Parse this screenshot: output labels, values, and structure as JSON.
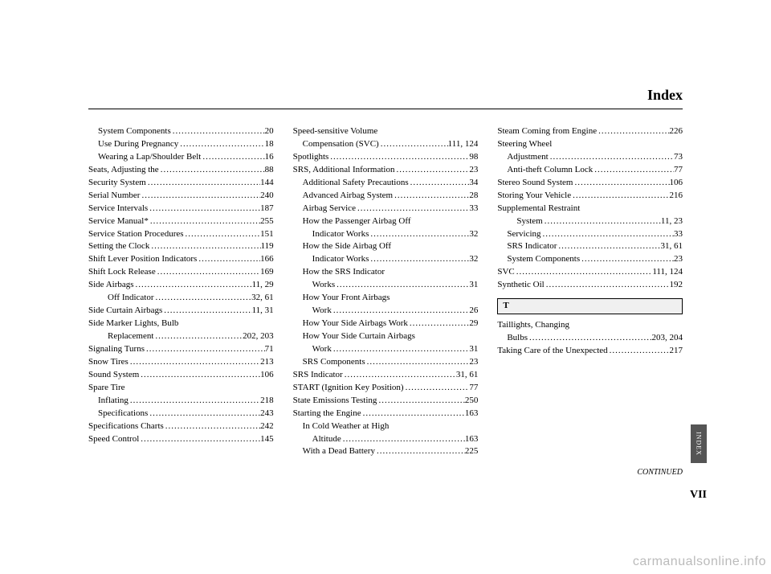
{
  "header": {
    "title": "Index"
  },
  "continued": "CONTINUED",
  "page_number": "VII",
  "index_tab": "INDEX",
  "watermark": "carmanualsonline.info",
  "section_letters": {
    "T": "T"
  },
  "columns": [
    [
      {
        "label": "System Components",
        "page": "20",
        "indent": 1
      },
      {
        "label": "Use During Pregnancy",
        "page": "18",
        "indent": 1
      },
      {
        "label": "Wearing a Lap/Shoulder Belt",
        "page": "16",
        "indent": 1
      },
      {
        "label": "Seats, Adjusting the",
        "page": "88",
        "indent": 0
      },
      {
        "label": "Security System",
        "page": "144",
        "indent": 0
      },
      {
        "label": "Serial Number",
        "page": "240",
        "indent": 0
      },
      {
        "label": "Service Intervals",
        "page": "187",
        "indent": 0
      },
      {
        "label": "Service Manual*",
        "page": "255",
        "indent": 0
      },
      {
        "label": "Service Station Procedures",
        "page": "151",
        "indent": 0
      },
      {
        "label": "Setting the Clock",
        "page": "119",
        "indent": 0
      },
      {
        "label": "Shift Lever Position Indicators",
        "page": "166",
        "indent": 0
      },
      {
        "label": "Shift Lock Release",
        "page": "169",
        "indent": 0
      },
      {
        "label": "Side Airbags",
        "page": "11, 29",
        "indent": 0
      },
      {
        "label": "Off Indicator",
        "page": "32, 61",
        "indent": 2
      },
      {
        "label": "Side Curtain Airbags",
        "page": "11, 31",
        "indent": 0
      },
      {
        "label": "Side Marker Lights, Bulb",
        "page": "",
        "indent": 0
      },
      {
        "label": "Replacement",
        "page": "202, 203",
        "indent": 2
      },
      {
        "label": "Signaling Turns",
        "page": "71",
        "indent": 0
      },
      {
        "label": "Snow Tires",
        "page": "213",
        "indent": 0
      },
      {
        "label": "Sound System",
        "page": "106",
        "indent": 0
      },
      {
        "label": "Spare Tire",
        "page": "",
        "indent": 0
      },
      {
        "label": "Inflating",
        "page": "218",
        "indent": 1
      },
      {
        "label": "Specifications",
        "page": "243",
        "indent": 1
      },
      {
        "label": "Specifications Charts",
        "page": "242",
        "indent": 0
      },
      {
        "label": "Speed Control",
        "page": "145",
        "indent": 0
      }
    ],
    [
      {
        "label": "Speed-sensitive Volume",
        "page": "",
        "indent": 0
      },
      {
        "label": "Compensation (SVC)",
        "page": "111, 124",
        "indent": 1
      },
      {
        "label": "Spotlights",
        "page": "98",
        "indent": 0
      },
      {
        "label": "SRS, Additional Information",
        "page": "23",
        "indent": 0
      },
      {
        "label": "Additional Safety Precautions",
        "page": "34",
        "indent": 1
      },
      {
        "label": "Advanced Airbag System",
        "page": "28",
        "indent": 1
      },
      {
        "label": "Airbag Service",
        "page": "33",
        "indent": 1
      },
      {
        "label": "How the Passenger Airbag Off",
        "page": "",
        "indent": 1
      },
      {
        "label": "Indicator Works",
        "page": "32",
        "indent": 2
      },
      {
        "label": "How the Side Airbag Off",
        "page": "",
        "indent": 1
      },
      {
        "label": "Indicator Works",
        "page": "32",
        "indent": 2
      },
      {
        "label": "How the SRS Indicator",
        "page": "",
        "indent": 1
      },
      {
        "label": "Works",
        "page": "31",
        "indent": 2
      },
      {
        "label": "How Your Front Airbags",
        "page": "",
        "indent": 1
      },
      {
        "label": "Work",
        "page": "26",
        "indent": 2
      },
      {
        "label": "How Your Side Airbags Work",
        "page": "29",
        "indent": 1
      },
      {
        "label": "How Your Side Curtain Airbags",
        "page": "",
        "indent": 1
      },
      {
        "label": "Work",
        "page": "31",
        "indent": 2
      },
      {
        "label": "SRS Components",
        "page": "23",
        "indent": 1
      },
      {
        "label": "SRS Indicator",
        "page": "31, 61",
        "indent": 0
      },
      {
        "label": "START (Ignition Key Position)",
        "page": "77",
        "indent": 0
      },
      {
        "label": "State Emissions Testing",
        "page": "250",
        "indent": 0
      },
      {
        "label": "Starting the Engine",
        "page": "163",
        "indent": 0
      },
      {
        "label": "In Cold Weather at High",
        "page": "",
        "indent": 1
      },
      {
        "label": "Altitude",
        "page": "163",
        "indent": 2
      },
      {
        "label": "With a Dead Battery",
        "page": "225",
        "indent": 1
      }
    ],
    [
      {
        "label": "Steam Coming from Engine",
        "page": "226",
        "indent": 0
      },
      {
        "label": "Steering Wheel",
        "page": "",
        "indent": 0
      },
      {
        "label": "Adjustment",
        "page": "73",
        "indent": 1
      },
      {
        "label": "Anti-theft Column Lock",
        "page": "77",
        "indent": 1
      },
      {
        "label": "Stereo Sound System",
        "page": "106",
        "indent": 0
      },
      {
        "label": "Storing Your Vehicle",
        "page": "216",
        "indent": 0
      },
      {
        "label": "Supplemental Restraint",
        "page": "",
        "indent": 0
      },
      {
        "label": "System",
        "page": "11, 23",
        "indent": 2
      },
      {
        "label": "Servicing",
        "page": "33",
        "indent": 1
      },
      {
        "label": "SRS Indicator",
        "page": "31, 61",
        "indent": 1
      },
      {
        "label": "System Components",
        "page": "23",
        "indent": 1
      },
      {
        "label": "SVC",
        "page": "111, 124",
        "indent": 0
      },
      {
        "label": "Synthetic Oil",
        "page": "192",
        "indent": 0
      },
      {
        "section": "T"
      },
      {
        "label": "Taillights, Changing",
        "page": "",
        "indent": 0
      },
      {
        "label": "Bulbs",
        "page": "203, 204",
        "indent": 1
      },
      {
        "label": "Taking Care of the Unexpected",
        "page": "217",
        "indent": 0
      }
    ]
  ]
}
